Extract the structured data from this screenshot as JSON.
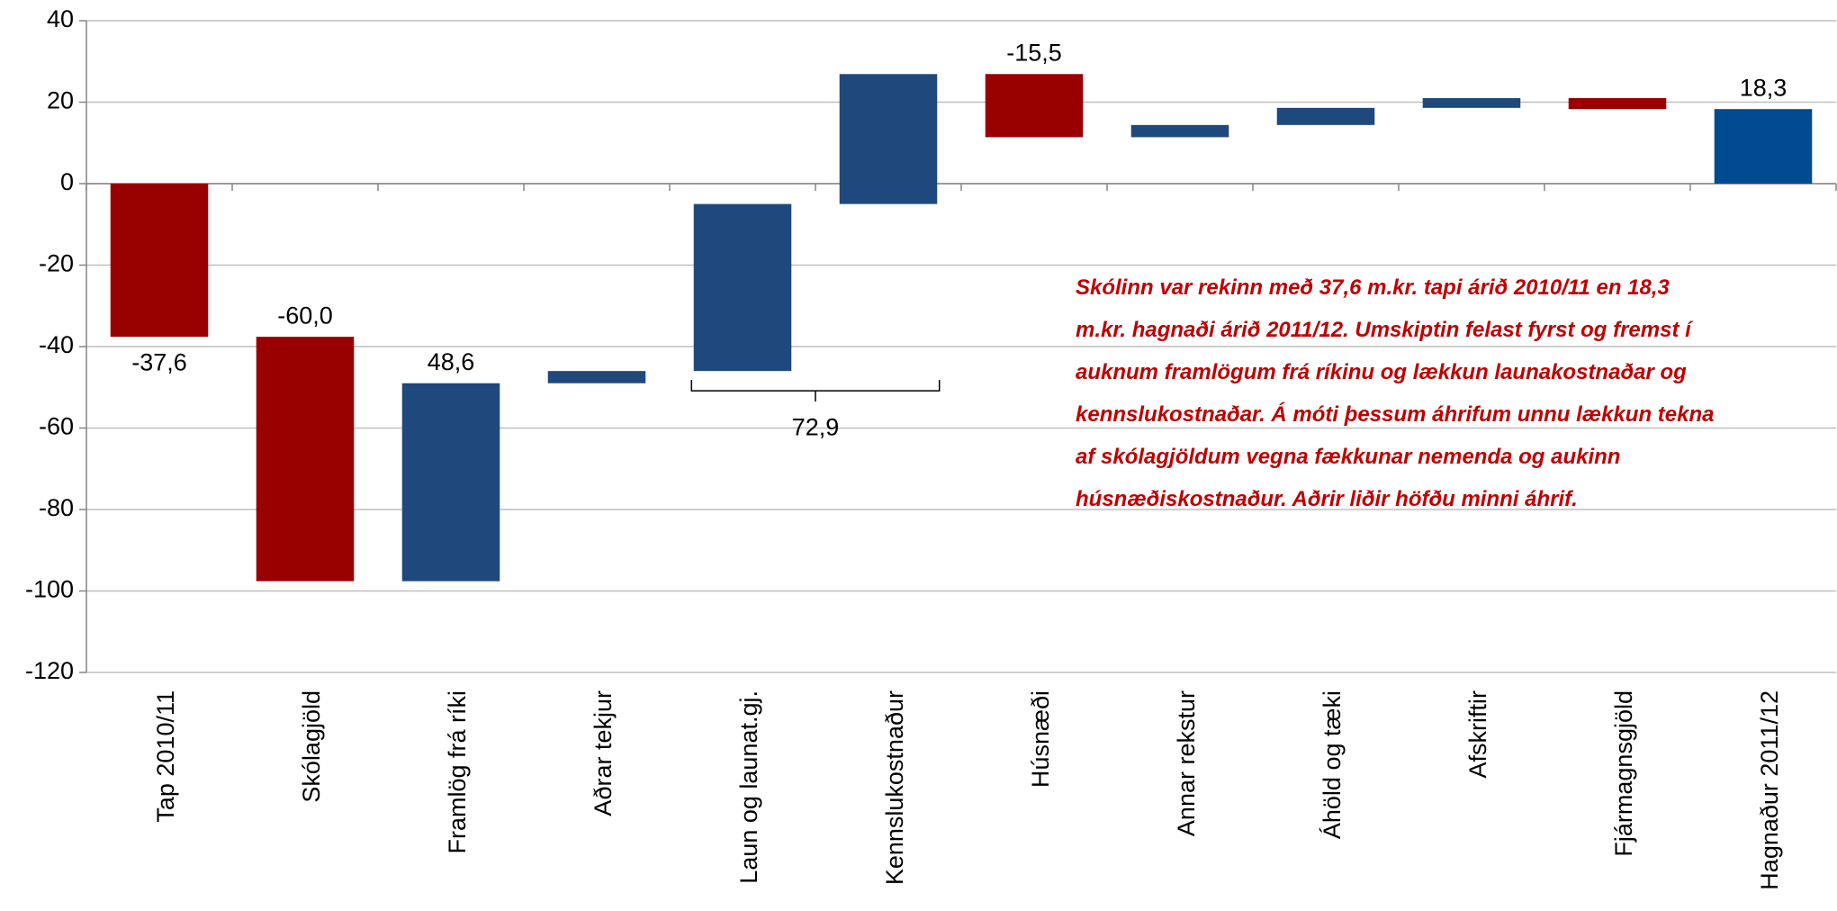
{
  "chart_data": {
    "type": "waterfall",
    "categories": [
      "Tap 2010/11",
      "Skólagjöld",
      "Framlög frá ríki",
      "Aðrar tekjur",
      "Laun og launat.gj.",
      "Kennslukostnaður",
      "Húsnæði",
      "Annar rekstur",
      "Áhöld og tæki",
      "Afskriftir",
      "Fjármagnsgjöld",
      "Hagnaður 2011/12"
    ],
    "measure": [
      "total",
      "relative",
      "relative",
      "relative",
      "relative",
      "relative",
      "relative",
      "relative",
      "relative",
      "relative",
      "relative",
      "total"
    ],
    "values": [
      -37.6,
      -60.0,
      48.6,
      3.0,
      41.0,
      31.9,
      -15.5,
      3.0,
      4.2,
      2.4,
      -2.7,
      18.3
    ],
    "value_labels": [
      "-37,6",
      "-60,0",
      "48,6",
      null,
      null,
      null,
      "-15,5",
      null,
      null,
      null,
      null,
      "18,3"
    ],
    "colors": [
      "#990000",
      "#990000",
      "#1f497d",
      "#1f497d",
      "#1f497d",
      "#1f497d",
      "#990000",
      "#1f497d",
      "#1f497d",
      "#1f497d",
      "#990000",
      "#004a8f"
    ],
    "ylim": [
      -120,
      40
    ],
    "yticks": [
      -120,
      -100,
      -80,
      -60,
      -40,
      -20,
      0,
      20,
      40
    ],
    "grid": true,
    "bracket_label": "72,9",
    "annotation": [
      "Skólinn var rekinn með 37,6 m.kr. tapi árið 2010/11 en 18,3",
      "m.kr. hagnaði árið 2011/12.  Umskiptin felast fyrst og fremst í",
      "auknum framlögum frá ríkinu og lækkun launakostnaðar og",
      "kennslukostnaðar.  Á móti þessum áhrifum unnu lækkun tekna",
      "af skólagjöldum vegna fækkunar nemenda og aukinn",
      "húsnæðiskostnaður.  Aðrir liðir höfðu minni áhrif."
    ]
  }
}
